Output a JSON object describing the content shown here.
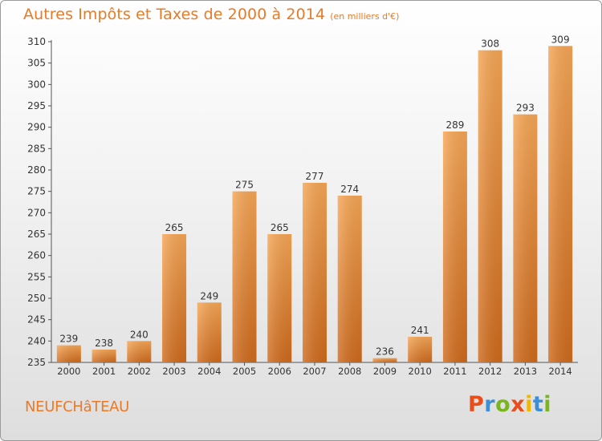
{
  "header": {
    "title": "Autres Impôts et Taxes de 2000 à 2014",
    "subtitle": "(en milliers d'€)"
  },
  "footer": {
    "city": "NEUFCHâTEAU",
    "logo_text": "Proxiti",
    "logo_colors": [
      "#e84e1b",
      "#3a8fd6",
      "#7ab51d",
      "#e84e1b",
      "#f2b600",
      "#3a8fd6",
      "#7ab51d"
    ]
  },
  "colors": {
    "bar_light": "#f6a655",
    "bar_dark": "#cf6a1c",
    "text": "#333333",
    "accent": "#e87a28"
  },
  "chart_data": {
    "type": "bar",
    "categories": [
      "2000",
      "2001",
      "2002",
      "2003",
      "2004",
      "2005",
      "2006",
      "2007",
      "2008",
      "2009",
      "2010",
      "2011",
      "2012",
      "2013",
      "2014"
    ],
    "values": [
      239,
      238,
      240,
      265,
      249,
      275,
      265,
      277,
      274,
      236,
      241,
      289,
      308,
      293,
      309
    ],
    "title": "Autres Impôts et Taxes de 2000 à 2014",
    "xlabel": "",
    "ylabel": "",
    "ylim": [
      235,
      310
    ],
    "yticks": [
      235,
      240,
      245,
      250,
      255,
      260,
      265,
      270,
      275,
      280,
      285,
      290,
      295,
      300,
      305,
      310
    ],
    "grid": false,
    "data_labels": true
  }
}
